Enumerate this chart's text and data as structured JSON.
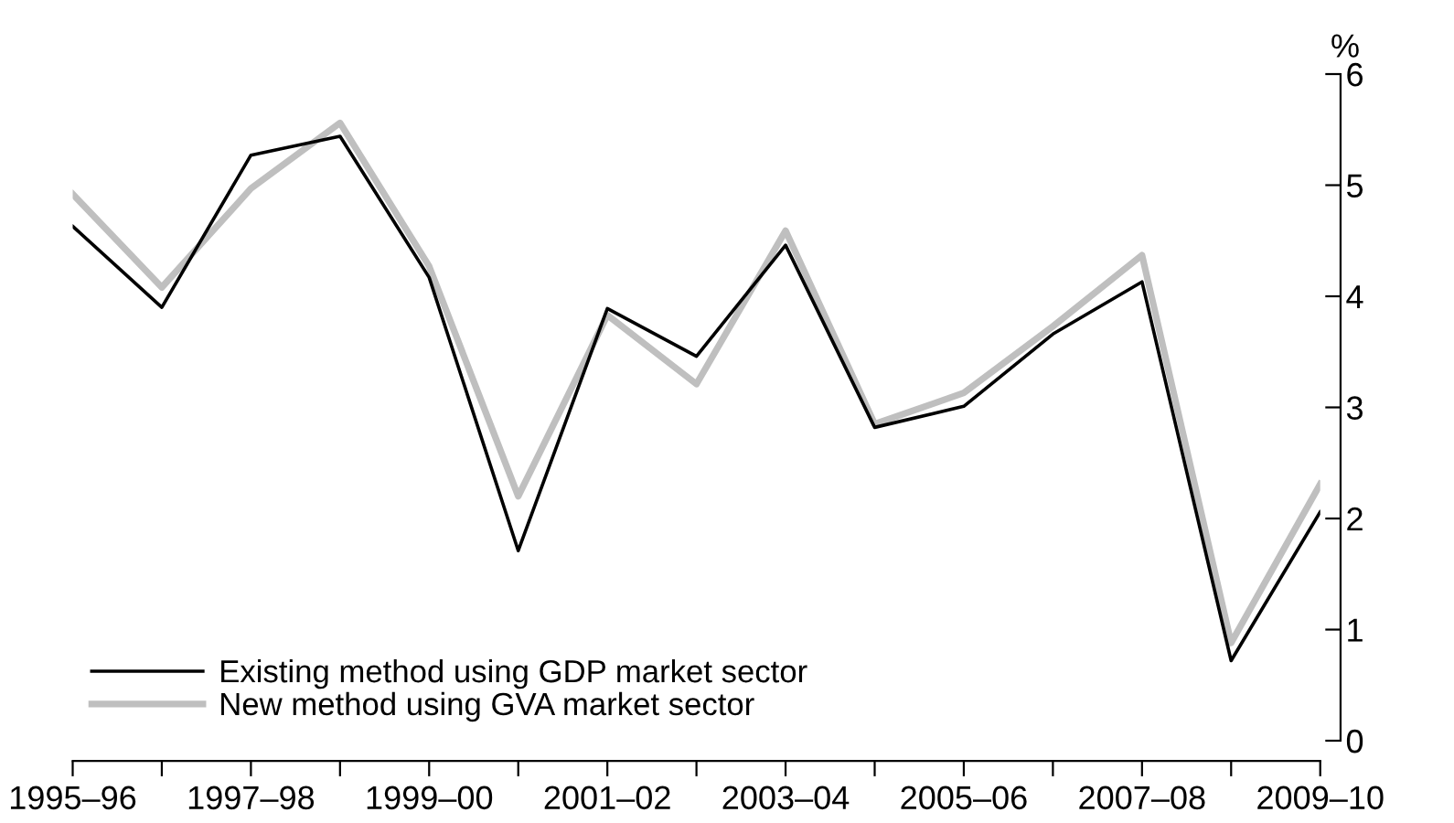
{
  "chart_data": {
    "type": "line",
    "categories": [
      "1995–96",
      null,
      "1997–98",
      null,
      "1999–00",
      null,
      "2001–02",
      null,
      "2003–04",
      null,
      "2005–06",
      null,
      "2007–08",
      null,
      "2009–10"
    ],
    "series": [
      {
        "name": "Existing method using GDP market sector",
        "color": "#000000",
        "values": [
          4.63,
          3.9,
          5.27,
          5.44,
          4.17,
          1.71,
          3.89,
          3.46,
          4.46,
          2.82,
          3.01,
          3.66,
          4.13,
          0.72,
          2.06
        ]
      },
      {
        "name": "New method using GVA market sector",
        "color": "#bfbfbf",
        "values": [
          4.92,
          4.08,
          4.97,
          5.56,
          4.27,
          2.2,
          3.83,
          3.21,
          4.59,
          2.85,
          3.13,
          3.73,
          4.37,
          0.88,
          2.31
        ]
      }
    ],
    "ylabel": "%",
    "ylim": [
      0,
      6
    ],
    "yticks": [
      0,
      1,
      2,
      3,
      4,
      5,
      6
    ],
    "grid": false,
    "legend": "bottom left",
    "marker": "none",
    "line_style": "solid"
  }
}
